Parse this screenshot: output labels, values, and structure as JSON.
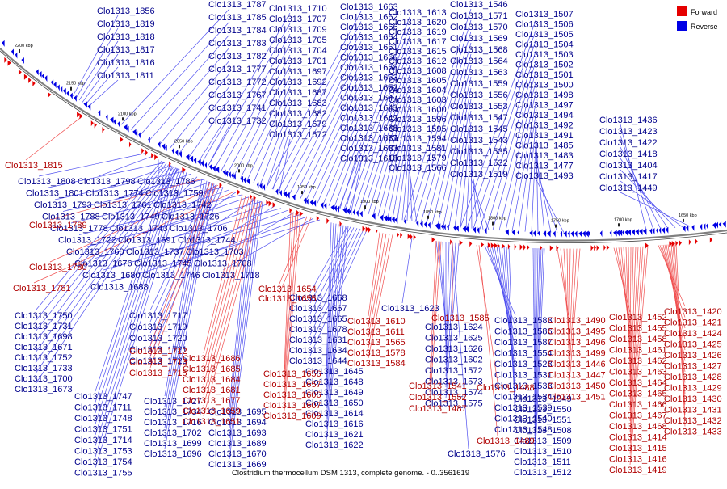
{
  "colors": {
    "forward": "#e50000",
    "reverse": "#0000e5",
    "forward_line": "#f05050",
    "reverse_line": "#5050f0",
    "backbone": "#808080",
    "label_reverse": "#00008b",
    "label_forward": "#b00000"
  },
  "legend": [
    {
      "label": "Forward",
      "color": "#e50000"
    },
    {
      "label": "Reverse",
      "color": "#0000e5"
    }
  ],
  "caption": "Clostridium thermocellum DSM 1313, complete genome. - 0..3561619",
  "ticks": [
    "2200 kbp",
    "2150 kbp",
    "2100 kbp",
    "2050 kbp",
    "2000 kbp",
    "1950 kbp",
    "1900 kbp",
    "1850 kbp",
    "1800 kbp",
    "1750 kbp",
    "1700 kbp",
    "1650 kbp"
  ],
  "labels_reverse_upper": [
    "Clo1313_1856",
    "Clo1313_1819",
    "Clo1313_1818",
    "Clo1313_1817",
    "Clo1313_1816",
    "Clo1313_1811",
    "Clo1313_1787",
    "Clo1313_1785",
    "Clo1313_1784",
    "Clo1313_1783",
    "Clo1313_1782",
    "Clo1313_1777",
    "Clo1313_1772",
    "Clo1313_1767",
    "Clo1313_1741",
    "Clo1313_1732",
    "Clo1313_1710",
    "Clo1313_1707",
    "Clo1313_1709",
    "Clo1313_1705",
    "Clo1313_1704",
    "Clo1313_1701",
    "Clo1313_1697",
    "Clo1313_1692",
    "Clo1313_1687",
    "Clo1313_1683",
    "Clo1313_1682",
    "Clo1313_1679",
    "Clo1313_1672",
    "Clo1313_1663",
    "Clo1313_1662",
    "Clo1313_1666",
    "Clo1313_1664",
    "Clo1313_1661",
    "Clo1313_1660",
    "Clo1313_1658",
    "Clo1313_1653",
    "Clo1313_1652",
    "Clo1313_1647",
    "Clo1313_1643",
    "Clo1313_1642",
    "Clo1313_1638",
    "Clo1313_1637",
    "Clo1313_1633",
    "Clo1313_1618",
    "Clo1313_1613",
    "Clo1313_1620",
    "Clo1313_1619",
    "Clo1313_1617",
    "Clo1313_1615",
    "Clo1313_1612",
    "Clo1313_1608",
    "Clo1313_1605",
    "Clo1313_1604",
    "Clo1313_1603",
    "Clo1313_1600",
    "Clo1313_1596",
    "Clo1313_1595",
    "Clo1313_1594",
    "Clo1313_1581",
    "Clo1313_1579",
    "Clo1313_1566",
    "Clo1313_1546",
    "Clo1313_1571",
    "Clo1313_1570",
    "Clo1313_1569",
    "Clo1313_1568",
    "Clo1313_1564",
    "Clo1313_1563",
    "Clo1313_1559",
    "Clo1313_1556",
    "Clo1313_1553",
    "Clo1313_1547",
    "Clo1313_1545",
    "Clo1313_1543",
    "Clo1313_1535",
    "Clo1313_1532",
    "Clo1313_1519",
    "Clo1313_1507",
    "Clo1313_1506",
    "Clo1313_1505",
    "Clo1313_1504",
    "Clo1313_1503",
    "Clo1313_1502",
    "Clo1313_1501",
    "Clo1313_1500",
    "Clo1313_1498",
    "Clo1313_1497",
    "Clo1313_1494",
    "Clo1313_1492",
    "Clo1313_1491",
    "Clo1313_1485",
    "Clo1313_1483",
    "Clo1313_1477",
    "Clo1313_1493",
    "Clo1313_1436",
    "Clo1313_1423",
    "Clo1313_1422",
    "Clo1313_1418",
    "Clo1313_1404",
    "Clo1313_1417",
    "Clo1313_1449"
  ],
  "labels_upper_left_reverse": [
    "Clo1313_1808",
    "Clo1313_1798",
    "Clo1313_1786",
    "Clo1313_1801",
    "Clo1313_1774",
    "Clo1313_1759",
    "Clo1313_1793",
    "Clo1313_1761",
    "Clo1313_1742",
    "Clo1313_1788",
    "Clo1313_1749",
    "Clo1313_1726",
    "Clo1313_1778",
    "Clo1313_1743",
    "Clo1313_1706",
    "Clo1313_1722",
    "Clo1313_1691",
    "Clo1313_1744",
    "Clo1313_1760",
    "Clo1313_1737",
    "Clo1313_1703",
    "Clo1313_1676",
    "Clo1313_1745",
    "Clo1313_1708",
    "Clo1313_1680",
    "Clo1313_1746",
    "Clo1313_1718",
    "Clo1313_1688"
  ],
  "labels_forward_upper": [
    "Clo1313_1815",
    "Clo1313_1789",
    "Clo1313_1780",
    "Clo1313_1781"
  ],
  "labels_lower_reverse": [
    "Clo1313_1750",
    "Clo1313_1731",
    "Clo1313_1698",
    "Clo1313_1671",
    "Clo1313_1752",
    "Clo1313_1733",
    "Clo1313_1700",
    "Clo1313_1673",
    "Clo1313_1747",
    "Clo1313_1711",
    "Clo1313_1748",
    "Clo1313_1751",
    "Clo1313_1714",
    "Clo1313_1753",
    "Clo1313_1754",
    "Clo1313_1755",
    "Clo1313_1717",
    "Clo1313_1719",
    "Clo1313_1720",
    "Clo1313_1721",
    "Clo1313_1723",
    "Clo1313_1727",
    "Clo1313_1734",
    "Clo1313_1716",
    "Clo1313_1702",
    "Clo1313_1699",
    "Clo1313_1696",
    "Clo1313_1695",
    "Clo1313_1694",
    "Clo1313_1693",
    "Clo1313_1689",
    "Clo1313_1670",
    "Clo1313_1669",
    "Clo1313_1668",
    "Clo1313_1667",
    "Clo1313_1665",
    "Clo1313_1678",
    "Clo1313_1631",
    "Clo1313_1634",
    "Clo1313_1644",
    "Clo1313_1645",
    "Clo1313_1648",
    "Clo1313_1649",
    "Clo1313_1650",
    "Clo1313_1614",
    "Clo1313_1616",
    "Clo1313_1621",
    "Clo1313_1622",
    "Clo1313_1623",
    "Clo1313_1624",
    "Clo1313_1625",
    "Clo1313_1626",
    "Clo1313_1602",
    "Clo1313_1572",
    "Clo1313_1573",
    "Clo1313_1574",
    "Clo1313_1575",
    "Clo1313_1576",
    "Clo1313_1583",
    "Clo1313_1586",
    "Clo1313_1587",
    "Clo1313_1554",
    "Clo1313_1528",
    "Clo1313_1531",
    "Clo1313_1533",
    "Clo1313_1534",
    "Clo1313_1539",
    "Clo1313_1540",
    "Clo1313_1548",
    "Clo1313_1549",
    "Clo1313_1550",
    "Clo1313_1551",
    "Clo1313_1508",
    "Clo1313_1509",
    "Clo1313_1510",
    "Clo1313_1511",
    "Clo1313_1512",
    "Clo1313_1513",
    "Clo1313_1514",
    "Clo1313_1515"
  ],
  "labels_lower_forward": [
    "Clo1313_1712",
    "Clo1313_1713",
    "Clo1313_1715",
    "Clo1313_1686",
    "Clo1313_1685",
    "Clo1313_1684",
    "Clo1313_1681",
    "Clo1313_1677",
    "Clo1313_1659",
    "Clo1313_1651",
    "Clo1313_1654",
    "Clo1313_1655",
    "Clo1313_1656",
    "Clo1313_1657",
    "Clo1313_1606",
    "Clo1313_1607",
    "Clo1313_1609",
    "Clo1313_1610",
    "Clo1313_1611",
    "Clo1313_1565",
    "Clo1313_1578",
    "Clo1313_1584",
    "Clo1313_1585",
    "Clo1313_1541",
    "Clo1313_1552",
    "Clo1313_1487",
    "Clo1313_1488",
    "Clo1313_1489",
    "Clo1313_1490",
    "Clo1313_1495",
    "Clo1313_1496",
    "Clo1313_1499",
    "Clo1313_1446",
    "Clo1313_1447",
    "Clo1313_1450",
    "Clo1313_1451",
    "Clo1313_1452",
    "Clo1313_1455",
    "Clo1313_1458",
    "Clo1313_1461",
    "Clo1313_1462",
    "Clo1313_1463",
    "Clo1313_1464",
    "Clo1313_1465",
    "Clo1313_1466",
    "Clo1313_1467",
    "Clo1313_1468",
    "Clo1313_1414",
    "Clo1313_1415",
    "Clo1313_1416",
    "Clo1313_1419",
    "Clo1313_1420",
    "Clo1313_1421",
    "Clo1313_1424",
    "Clo1313_1425",
    "Clo1313_1426",
    "Clo1313_1427",
    "Clo1313_1428",
    "Clo1313_1429",
    "Clo1313_1430",
    "Clo1313_1431",
    "Clo1313_1432",
    "Clo1313_1433"
  ]
}
